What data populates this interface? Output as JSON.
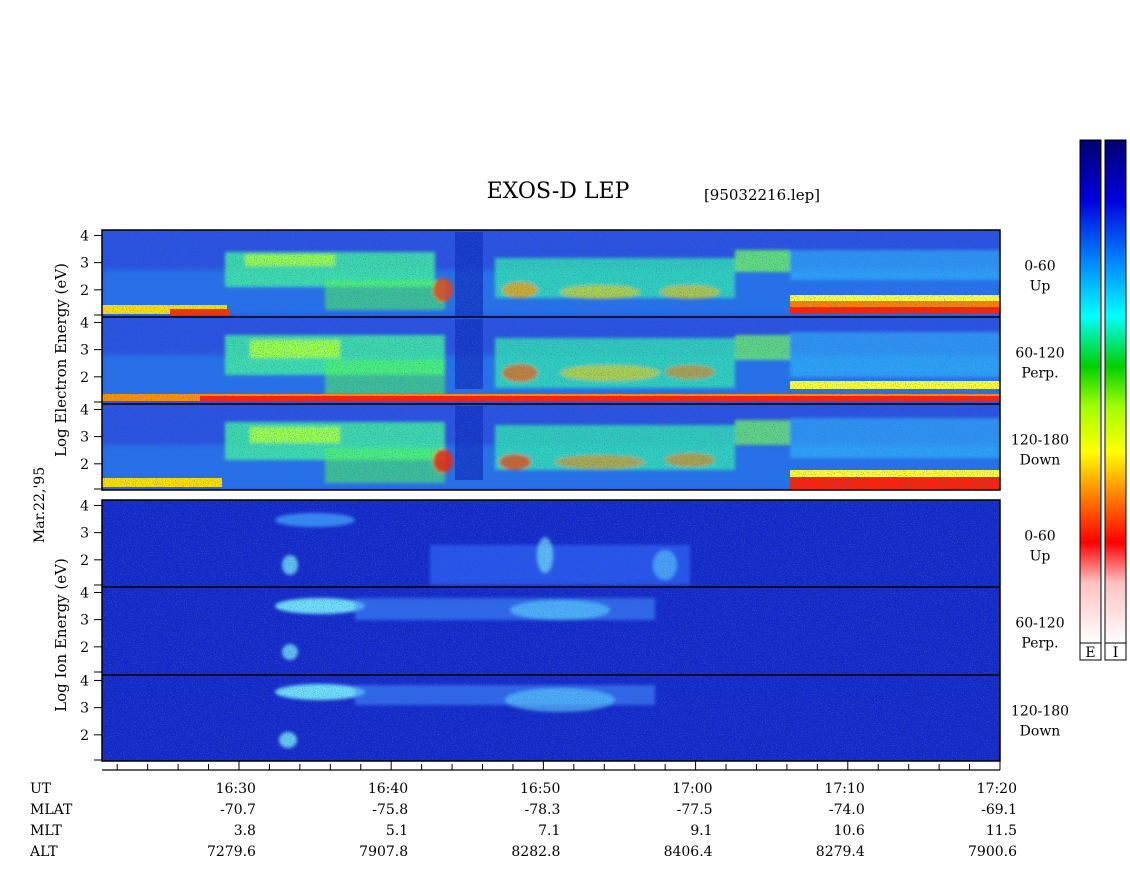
{
  "title": "EXOS-D LEP",
  "file_tag": "[95032216.lep]",
  "date_label": "Mar.22,'95",
  "electron_axis_label": [
    "Log",
    "Electron",
    "Energy",
    "(eV)"
  ],
  "ion_axis_label": [
    "Log",
    "Ion",
    "Energy",
    "(eV)"
  ],
  "colorbar_labels": [
    "E",
    "I"
  ],
  "colors": {
    "background_spectrogram": "#1020c0",
    "scale": [
      "#ffffff",
      "#ff0000",
      "#ff8c00",
      "#ffff00",
      "#00e000",
      "#00ffff",
      "#0080ff",
      "#0000d0",
      "#000080"
    ]
  },
  "chart_data": {
    "type": "heatmap",
    "panels": [
      {
        "species": "Electron",
        "pitch_angle": "0-60",
        "direction": "Up",
        "y_ticks": [
          "4",
          "3",
          "2"
        ],
        "ylim": [
          1,
          4.2
        ]
      },
      {
        "species": "Electron",
        "pitch_angle": "60-120",
        "direction": "Perp.",
        "y_ticks": [
          "4",
          "3",
          "2"
        ],
        "ylim": [
          1,
          4.2
        ]
      },
      {
        "species": "Electron",
        "pitch_angle": "120-180",
        "direction": "Down",
        "y_ticks": [
          "4",
          "3",
          "2"
        ],
        "ylim": [
          1,
          4.2
        ]
      },
      {
        "species": "Ion",
        "pitch_angle": "0-60",
        "direction": "Up",
        "y_ticks": [
          "4",
          "3",
          "2"
        ],
        "ylim": [
          1,
          4.2
        ]
      },
      {
        "species": "Ion",
        "pitch_angle": "60-120",
        "direction": "Perp.",
        "y_ticks": [
          "4",
          "3",
          "2"
        ],
        "ylim": [
          1,
          4.2
        ]
      },
      {
        "species": "Ion",
        "pitch_angle": "120-180",
        "direction": "Down",
        "y_ticks": [
          "4",
          "3",
          "2"
        ],
        "ylim": [
          1,
          4.2
        ]
      }
    ],
    "xlim_minutes_ut": [
      "16:21",
      "17:20"
    ],
    "ephemeris": {
      "row_labels": [
        "UT",
        "MLAT",
        "MLT",
        "ALT"
      ],
      "UT": [
        "16:30",
        "16:40",
        "16:50",
        "17:00",
        "17:10",
        "17:20"
      ],
      "MLAT": [
        "-70.7",
        "-75.8",
        "-78.3",
        "-77.5",
        "-74.0",
        "-69.1"
      ],
      "MLT": [
        "3.8",
        "5.1",
        "7.1",
        "9.1",
        "10.6",
        "11.5"
      ],
      "ALT": [
        "7279.6",
        "7907.8",
        "8282.8",
        "8406.4",
        "8279.4",
        "7900.6"
      ]
    }
  }
}
